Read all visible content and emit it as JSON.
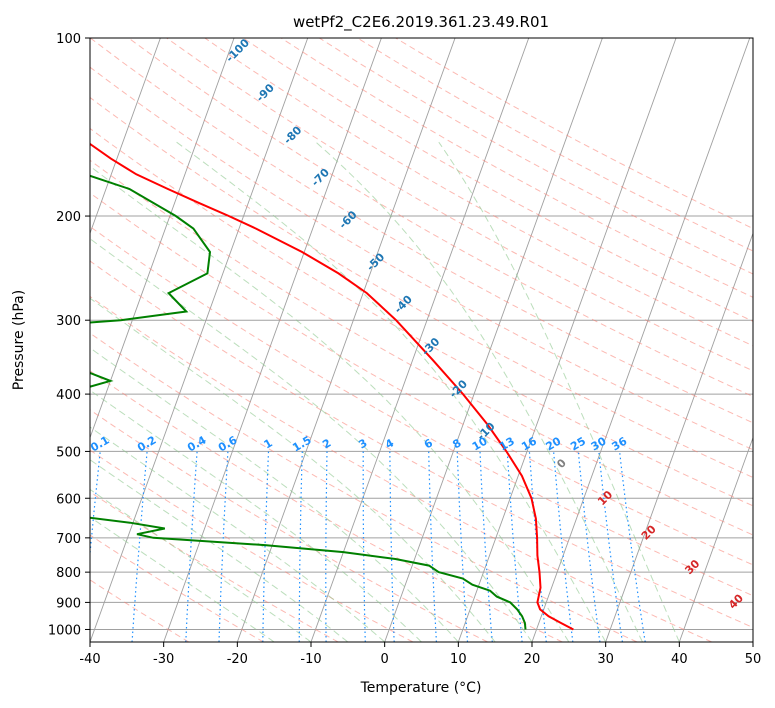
{
  "chart_data": {
    "type": "line",
    "title": "wetPf2_C2E6.2019.361.23.49.R01",
    "xlabel": "Temperature (°C)",
    "ylabel": "Pressure (hPa)",
    "xlim": [
      -40,
      50
    ],
    "ylim": [
      1050,
      100
    ],
    "y_scale": "log",
    "x_ticks": [
      "-40",
      "-30",
      "-20",
      "-10",
      "0",
      "10",
      "20",
      "30",
      "40",
      "50"
    ],
    "y_ticks": [
      "100",
      "200",
      "300",
      "400",
      "500",
      "600",
      "700",
      "800",
      "900",
      "1000"
    ],
    "grid": true,
    "series": [
      {
        "color": "#ff0000",
        "p": [
          1000,
          975,
          950,
          925,
          900,
          850,
          800,
          750,
          700,
          650,
          600,
          550,
          500,
          450,
          400,
          350,
          300,
          270,
          250,
          230,
          210,
          200,
          190,
          180,
          170,
          160,
          150,
          140,
          130,
          120,
          110,
          100
        ],
        "t": [
          25,
          23,
          21,
          19.5,
          18.8,
          18.5,
          17.6,
          16.5,
          15.6,
          14.5,
          12.9,
          10.5,
          7.2,
          3.3,
          -1.5,
          -7.3,
          -14.2,
          -19.5,
          -24.3,
          -30.3,
          -37.7,
          -42,
          -46.7,
          -51.6,
          -56.6,
          -60.8,
          -64.8,
          -68.8,
          -73.2,
          -78.1,
          -83.3,
          -88.8
        ]
      },
      {
        "color": "#008000",
        "p": [
          1000,
          975,
          950,
          925,
          900,
          880,
          860,
          840,
          820,
          800,
          780,
          760,
          740,
          720,
          700,
          690,
          675,
          660,
          640,
          620,
          610,
          600,
          580,
          570,
          560,
          540,
          520,
          500,
          470,
          440,
          420,
          400,
          380,
          360,
          340,
          320,
          300,
          290,
          270,
          250,
          230,
          210,
          200,
          180,
          170,
          160,
          150,
          140,
          120,
          100
        ],
        "t": [
          18.5,
          18.1,
          17.4,
          16.4,
          15.1,
          13.0,
          11.8,
          9.1,
          7.5,
          3.9,
          2.3,
          -2.6,
          -10.0,
          -21.0,
          -36.5,
          -38.9,
          -35.4,
          -40.4,
          -49.5,
          -61.2,
          -61.4,
          -55.3,
          -49.4,
          -52.0,
          -59.5,
          -52.4,
          -50.2,
          -49.6,
          -51.6,
          -59.1,
          -61.0,
          -55.7,
          -50.0,
          -55.5,
          -74.1,
          -81.4,
          -51.6,
          -43.1,
          -46.4,
          -42.1,
          -42.8,
          -46.2,
          -49.2,
          -56.8,
          -63.5,
          -68.0,
          -70.7,
          -74.0,
          -83.6,
          -95.4
        ]
      }
    ],
    "dry_adiabat_labels": [
      "-100",
      "-90",
      "-80",
      "-70",
      "-60",
      "-50",
      "-40",
      "-30",
      "-20",
      "-10"
    ],
    "mixing_ratio_labels": [
      "0.1",
      "0.2",
      "0.4",
      "0.6",
      "1",
      "1.5",
      "2",
      "3",
      "4",
      "6",
      "8",
      "10",
      "13",
      "16",
      "20",
      "25",
      "30",
      "36"
    ],
    "moist_adiabat_labels": [
      "0",
      "10",
      "20",
      "30",
      "40"
    ],
    "colors": {
      "temperature": "#ff0000",
      "dewpoint": "#008000",
      "dry_adiabat_label": "#1f77b4",
      "mixing_ratio": "#1e90ff",
      "moist_adiabat_label": "#d62728",
      "moist_zero": "#808080",
      "dry_adiabat_line": "#fa8072",
      "moist_adiabat_line": "#90c890",
      "isotherm": "#a0a0a0"
    }
  }
}
